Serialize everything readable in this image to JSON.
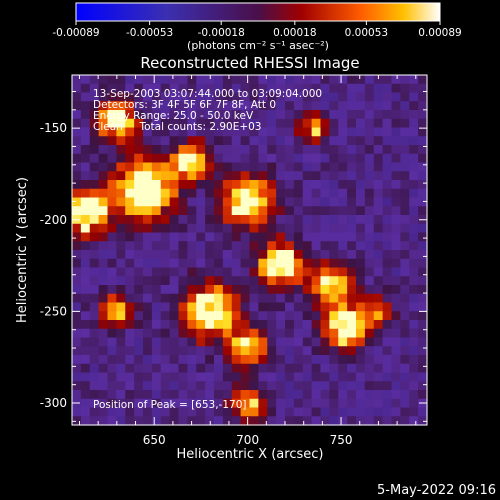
{
  "chart_data": {
    "type": "heatmap",
    "title": "Reconstructed RHESSI Image",
    "xlabel": "Heliocentric X (arcsec)",
    "ylabel": "Heliocentric Y (arcsec)",
    "xlim": [
      606,
      796
    ],
    "ylim": [
      -312,
      -121
    ],
    "x_ticks": [
      "650",
      "700",
      "750"
    ],
    "y_ticks": [
      "-150",
      "-200",
      "-250",
      "-300"
    ],
    "colorbar": {
      "range": [
        -0.00089,
        0.00089
      ],
      "ticks": [
        "-0.00089",
        "-0.00053",
        "-0.00018",
        "0.00018",
        "0.00053",
        "0.00089"
      ],
      "unit_label": "(photons cm⁻² s⁻¹ asec⁻²)"
    },
    "annotations": {
      "time": "13-Sep-2003 03:07:44.000 to 03:09:04.000",
      "detectors": "Detectors: 3F 4F 5F 6F 7F 8F, Att 0",
      "energy": "Energy Range: 25.0 - 50.0 keV",
      "clean": "Clean     Total counts: 2.90E+03",
      "peak": "Position of Peak = [653,-170]"
    },
    "peak_position": [
      653,
      -170
    ],
    "grid": false,
    "colors": {
      "background": "#000000",
      "text": "#ffffff"
    }
  },
  "footer": {
    "timestamp": "5-May-2022 09:16"
  }
}
